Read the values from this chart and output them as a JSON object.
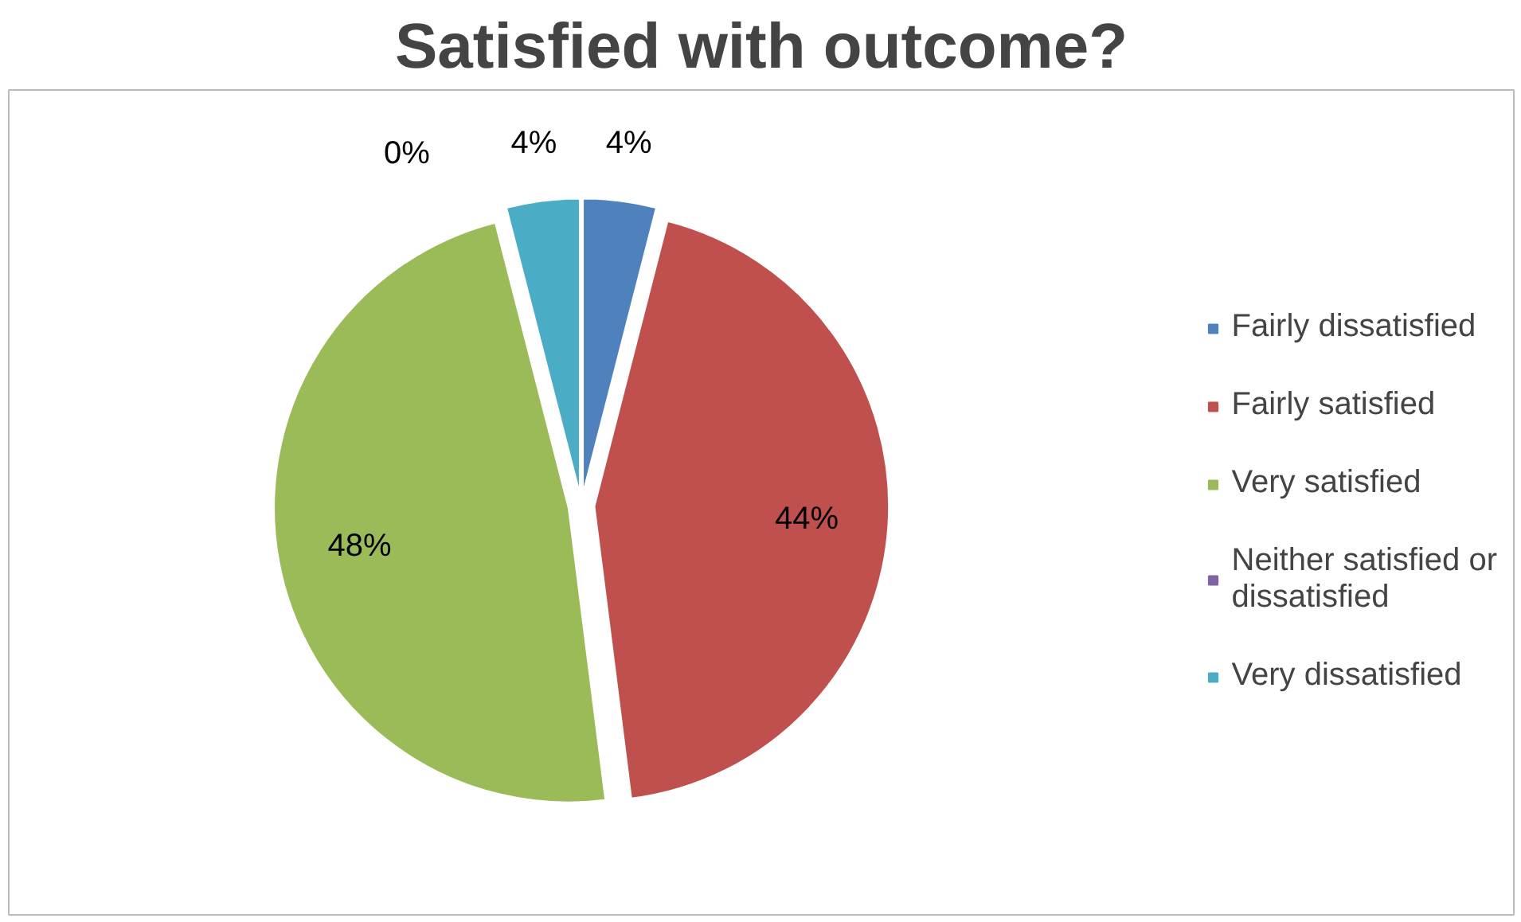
{
  "chart_data": {
    "type": "pie",
    "title": "Satisfied with outcome?",
    "categories": [
      "Fairly dissatisfied",
      "Fairly satisfied",
      "Very satisfied",
      "Neither satisfied or dissatisfied",
      "Very dissatisfied"
    ],
    "values": [
      4,
      44,
      48,
      0,
      4
    ],
    "colors": [
      "#4f81bd",
      "#c0504d",
      "#9bbb59",
      "#8064a2",
      "#4bacc6"
    ],
    "value_labels": [
      "4%",
      "44%",
      "48%",
      "0%",
      "4%"
    ],
    "legend": "right"
  }
}
